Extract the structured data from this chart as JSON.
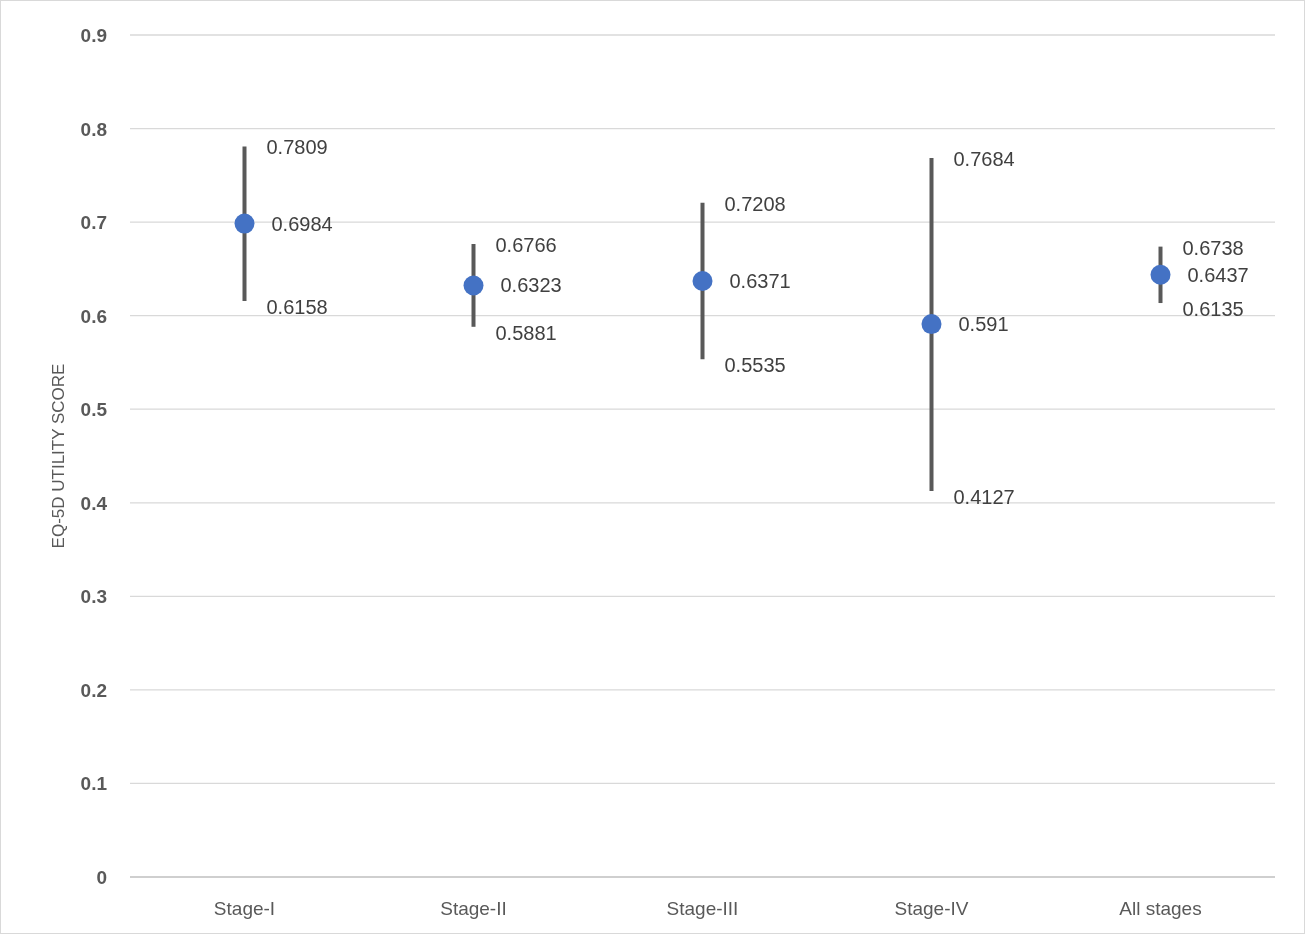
{
  "chart_data": {
    "type": "scatter",
    "ylabel": "EQ-5D UTILITY SCORE",
    "categories": [
      "Stage-I",
      "Stage-II",
      "Stage-III",
      "Stage-IV",
      "All stages"
    ],
    "values": [
      0.6984,
      0.6323,
      0.6371,
      0.591,
      0.6437
    ],
    "errors": [
      [
        0.6158,
        0.7809
      ],
      [
        0.5881,
        0.6766
      ],
      [
        0.5535,
        0.7208
      ],
      [
        0.4127,
        0.7684
      ],
      [
        0.6135,
        0.6738
      ]
    ],
    "annotations": [
      {
        "text": "0.7809",
        "x": "Stage-I",
        "y": 0.7809
      },
      {
        "text": "0.6158",
        "x": "Stage-I",
        "y": 0.6158
      },
      {
        "text": "0.6766",
        "x": "Stage-II",
        "y": 0.6766
      },
      {
        "text": "0.5881",
        "x": "Stage-II",
        "y": 0.5881
      },
      {
        "text": "0.7208",
        "x": "Stage-III",
        "y": 0.7208
      },
      {
        "text": "0.5535",
        "x": "Stage-III",
        "y": 0.5535
      },
      {
        "text": "0.7684",
        "x": "Stage-IV",
        "y": 0.7684
      },
      {
        "text": "0.4127",
        "x": "Stage-IV",
        "y": 0.4127
      },
      {
        "text": "0.6738",
        "x": "All stages",
        "y": 0.6738
      },
      {
        "text": "0.6135",
        "x": "All stages",
        "y": 0.6135
      }
    ],
    "color": "#4472c4",
    "ylim": [
      0,
      0.9
    ],
    "yticks": [
      0,
      0.1,
      0.2,
      0.3,
      0.4,
      0.5,
      0.6,
      0.7,
      0.8,
      0.9
    ],
    "grid": "y",
    "marker": "circle",
    "data_labels": true
  }
}
